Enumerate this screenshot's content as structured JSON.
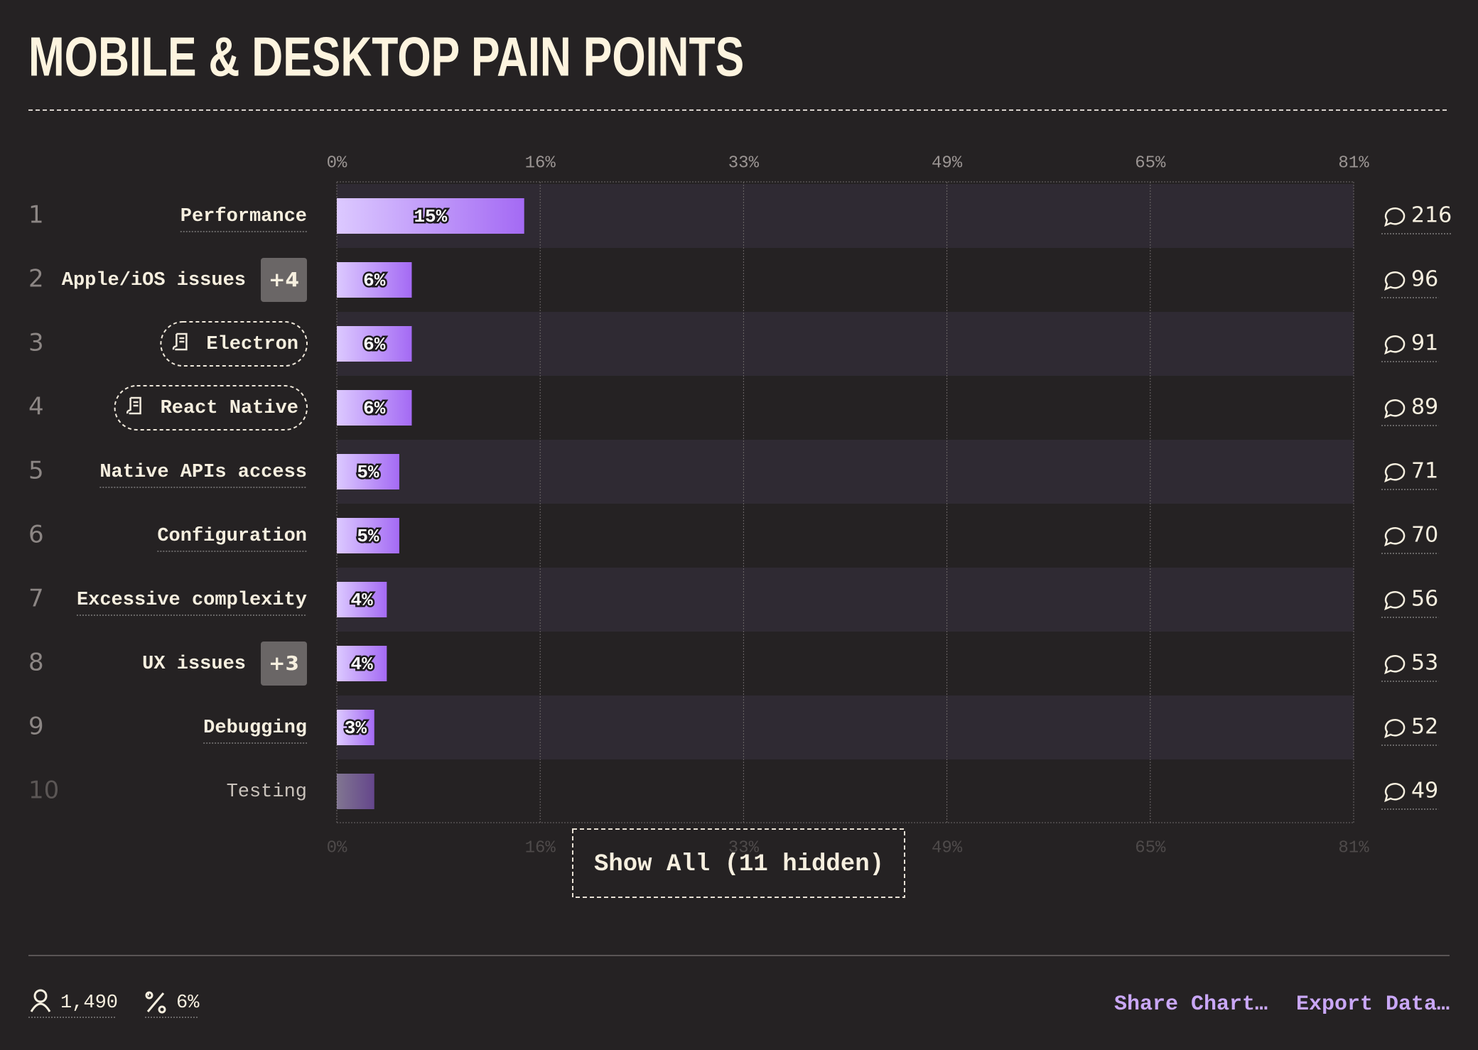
{
  "chart_data": {
    "type": "bar",
    "orientation": "horizontal",
    "title": "MOBILE & DESKTOP PAIN POINTS",
    "ranks": [
      1,
      2,
      3,
      4,
      5,
      6,
      7,
      8,
      9,
      10
    ],
    "categories": [
      "Performance",
      "Apple/iOS issues",
      "Electron",
      "React Native",
      "Native APIs access",
      "Configuration",
      "Excessive complexity",
      "UX issues",
      "Debugging",
      "Testing"
    ],
    "badges": [
      null,
      "+4",
      null,
      null,
      null,
      null,
      null,
      "+3",
      null,
      null
    ],
    "tagged": [
      false,
      false,
      true,
      true,
      false,
      false,
      false,
      false,
      false,
      false
    ],
    "values": [
      15,
      6,
      6,
      6,
      5,
      5,
      4,
      4,
      3,
      3
    ],
    "value_labels": [
      "15%",
      "6%",
      "6%",
      "6%",
      "5%",
      "5%",
      "4%",
      "4%",
      "3%",
      null
    ],
    "comments": [
      216,
      96,
      91,
      89,
      71,
      70,
      56,
      53,
      52,
      49
    ],
    "color": [
      "#dcc9ff",
      "#a46af4"
    ],
    "xlim": [
      0,
      81.4
    ],
    "xticks": [
      {
        "value": 0,
        "label": "0%"
      },
      {
        "value": 16.28,
        "label": "16%"
      },
      {
        "value": 32.56,
        "label": "33%"
      },
      {
        "value": 48.84,
        "label": "49%"
      },
      {
        "value": 65.12,
        "label": "65%"
      },
      {
        "value": 81.4,
        "label": "81%"
      }
    ],
    "grid": true
  },
  "show_all": "Show All (11 hidden)",
  "footer": {
    "respondents": "1,490",
    "percentage": "6%",
    "share": "Share Chart…",
    "export": "Export Data…"
  }
}
